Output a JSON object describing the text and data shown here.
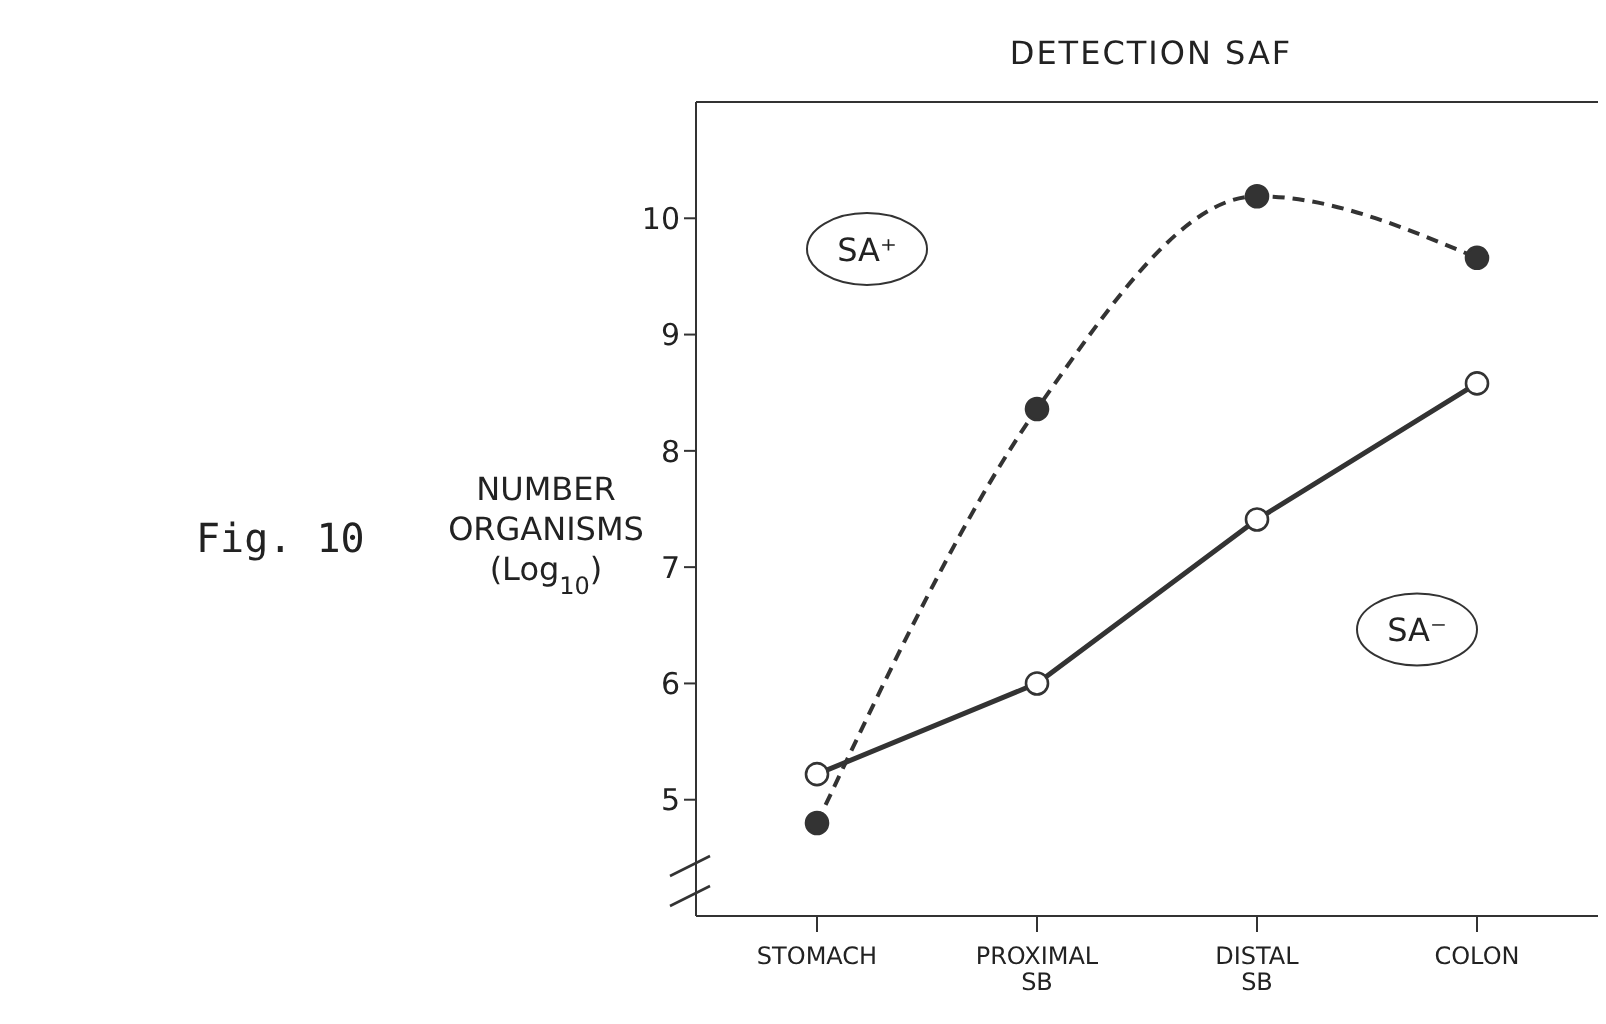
{
  "chart_data": {
    "type": "line",
    "title": "DETECTION SAF",
    "ylabel": "NUMBER ORGANISMS (Log$_{10}$)",
    "annotations": [
      "Fig. 10"
    ],
    "categories": [
      "STOMACH",
      "PROXIMAL SB",
      "DISTAL SB",
      "COLON"
    ],
    "series": [
      {
        "name": "SA⁺",
        "color": "#333333",
        "line_style": "dashed",
        "values": [
          4.8,
          8.36,
          10.19,
          9.66
        ]
      },
      {
        "name": "SA⁻",
        "color": "#333333",
        "line_style": "solid",
        "values": [
          5.22,
          6.0,
          7.41,
          8.58
        ]
      }
    ],
    "ylim": [
      4,
      11
    ],
    "yticks": [
      5,
      6,
      7,
      8,
      9,
      10
    ],
    "marker": "circle"
  }
}
